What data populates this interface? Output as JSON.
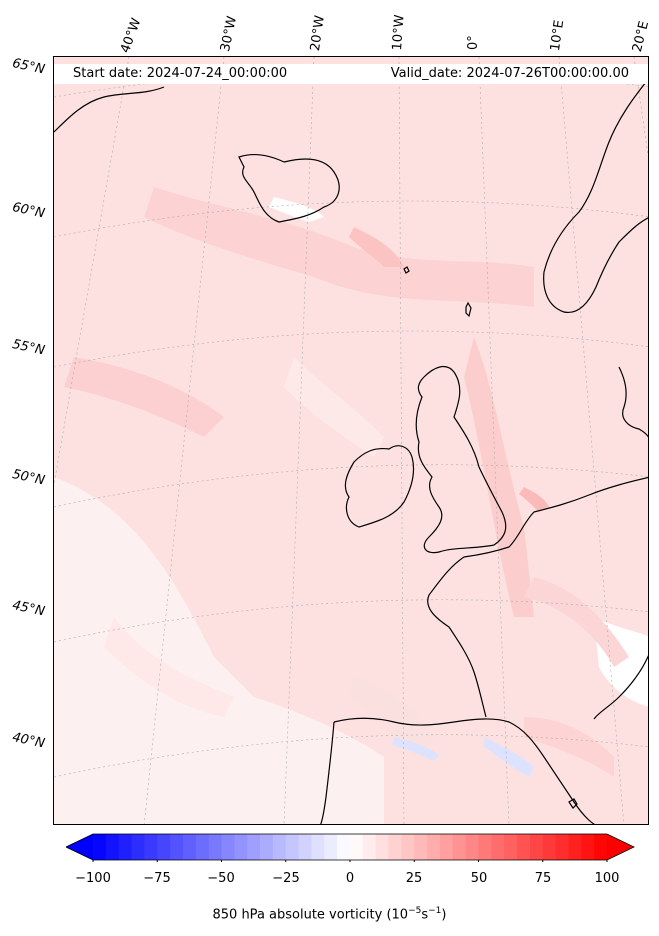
{
  "header": {
    "start_date": "Start date: 2024-07-24_00:00:00",
    "valid_date": "Valid_date: 2024-07-26T00:00:00.00"
  },
  "longitude_labels": [
    "40°W",
    "30°W",
    "20°W",
    "10°W",
    "0°",
    "10°E",
    "20°E"
  ],
  "latitude_labels": [
    "65°N",
    "60°N",
    "55°N",
    "50°N",
    "45°N",
    "40°N"
  ],
  "colorbar": {
    "label_text": "850 hPa absolute vorticity (10",
    "label_exp1": "−5",
    "label_mid": "s",
    "label_exp2": "−1",
    "label_end": ")",
    "ticks": [
      "−100",
      "−75",
      "−50",
      "−25",
      "0",
      "25",
      "50",
      "75",
      "100"
    ],
    "min": -100,
    "max": 100,
    "step": 5,
    "colors": {
      "low": "#0000ff",
      "mid": "#ffffff",
      "high": "#ff0000"
    }
  },
  "map": {
    "field_base_color": "#fde3e3",
    "coastline_color": "#000000",
    "gridline_color": "#aaaaaa"
  }
}
